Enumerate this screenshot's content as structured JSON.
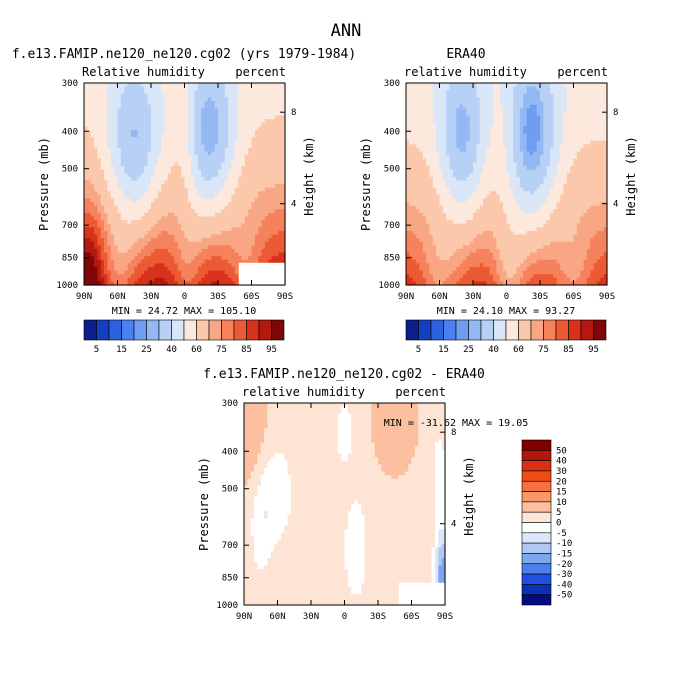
{
  "figure_title": "ANN",
  "chart_data": [
    {
      "type": "heatmap",
      "title": "f.e13.FAMIP.ne120_ne120.cg02 (yrs 1979-1984)",
      "left_string": "Relative humidity",
      "right_string": "percent",
      "ylabel": "Pressure (mb)",
      "ylabel_right": "Height (km)",
      "x_tick_labels": [
        "90N",
        "60N",
        "30N",
        "0",
        "30S",
        "60S",
        "90S"
      ],
      "x_values": [
        90,
        60,
        30,
        0,
        -30,
        -60,
        -90
      ],
      "y_tick_labels": [
        "300",
        "400",
        "500",
        "700",
        "850",
        "1000"
      ],
      "y_values": [
        300,
        400,
        500,
        700,
        850,
        1000
      ],
      "y_scale": "log",
      "y_right_tick_labels": [
        "8",
        "4"
      ],
      "y_right_values": [
        8,
        4
      ],
      "min_label": "MIN =",
      "min": "24.72",
      "max_label": "MAX =",
      "max": "105.10",
      "colorbar": {
        "orientation": "horizontal",
        "levels": [
          "5",
          "15",
          "25",
          "40",
          "60",
          "75",
          "85",
          "95"
        ],
        "level_values": [
          5,
          10,
          15,
          20,
          25,
          30,
          40,
          50,
          60,
          70,
          75,
          80,
          85,
          90,
          95
        ],
        "colors": [
          "#0a1e8c",
          "#1440c0",
          "#2a62e0",
          "#4a80f0",
          "#6e9df2",
          "#93b8f4",
          "#b6d0f6",
          "#d8e6f8",
          "#fce8dc",
          "#fcc8ac",
          "#f9a684",
          "#f5825c",
          "#ec5a34",
          "#d8321c",
          "#b41810",
          "#7c0808"
        ]
      }
    },
    {
      "type": "heatmap",
      "title": "ERA40",
      "left_string": "relative humidity",
      "right_string": "percent",
      "ylabel": "Pressure (mb)",
      "ylabel_right": "Height (km)",
      "x_tick_labels": [
        "90N",
        "60N",
        "30N",
        "0",
        "30S",
        "60S",
        "90S"
      ],
      "x_values": [
        90,
        60,
        30,
        0,
        -30,
        -60,
        -90
      ],
      "y_tick_labels": [
        "300",
        "400",
        "500",
        "700",
        "850",
        "1000"
      ],
      "y_values": [
        300,
        400,
        500,
        700,
        850,
        1000
      ],
      "y_scale": "log",
      "y_right_tick_labels": [
        "8",
        "4"
      ],
      "y_right_values": [
        8,
        4
      ],
      "min_label": "MIN =",
      "min": "24.10",
      "max_label": "MAX =",
      "max": "93.27",
      "colorbar": {
        "orientation": "horizontal",
        "levels": [
          "5",
          "15",
          "25",
          "40",
          "60",
          "75",
          "85",
          "95"
        ],
        "level_values": [
          5,
          10,
          15,
          20,
          25,
          30,
          40,
          50,
          60,
          70,
          75,
          80,
          85,
          90,
          95
        ],
        "colors": [
          "#0a1e8c",
          "#1440c0",
          "#2a62e0",
          "#4a80f0",
          "#6e9df2",
          "#93b8f4",
          "#b6d0f6",
          "#d8e6f8",
          "#fce8dc",
          "#fcc8ac",
          "#f9a684",
          "#f5825c",
          "#ec5a34",
          "#d8321c",
          "#b41810",
          "#7c0808"
        ]
      }
    },
    {
      "type": "heatmap",
      "title": "f.e13.FAMIP.ne120_ne120.cg02 - ERA40",
      "left_string": "relative humidity",
      "right_string": "percent",
      "ylabel": "Pressure (mb)",
      "ylabel_right": "Height (km)",
      "x_tick_labels": [
        "90N",
        "60N",
        "30N",
        "0",
        "30S",
        "60S",
        "90S"
      ],
      "x_values": [
        90,
        60,
        30,
        0,
        -30,
        -60,
        -90
      ],
      "y_tick_labels": [
        "300",
        "400",
        "500",
        "700",
        "850",
        "1000"
      ],
      "y_values": [
        300,
        400,
        500,
        700,
        850,
        1000
      ],
      "y_scale": "log",
      "y_right_tick_labels": [
        "8",
        "4"
      ],
      "y_right_values": [
        8,
        4
      ],
      "min_label": "MIN =",
      "min": "-31.62",
      "max_label": "MAX =",
      "max": "19.05",
      "colorbar": {
        "orientation": "vertical",
        "levels": [
          "50",
          "40",
          "30",
          "20",
          "15",
          "10",
          "5",
          "0",
          "-5",
          "-10",
          "-15",
          "-20",
          "-30",
          "-40",
          "-50"
        ],
        "level_values": [
          50,
          40,
          30,
          20,
          15,
          10,
          5,
          0,
          -5,
          -10,
          -15,
          -20,
          -30,
          -40,
          -50
        ],
        "colors": [
          "#800000",
          "#b01808",
          "#d83010",
          "#f04c18",
          "#f87040",
          "#f89868",
          "#fcc0a0",
          "#fde4d4",
          "#ffffff",
          "#dce8fa",
          "#b0c8f4",
          "#7ea6ee",
          "#4c80ea",
          "#2050e0",
          "#0c30b8",
          "#040c80"
        ]
      }
    }
  ]
}
